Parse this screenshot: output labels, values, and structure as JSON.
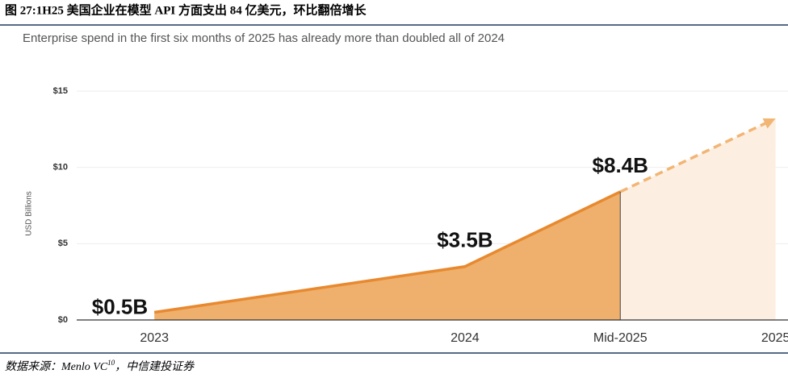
{
  "chart_data": {
    "type": "area",
    "title": "图 27:1H25 美国企业在模型 API 方面支出 84 亿美元，环比翻倍增长",
    "subtitle": "Enterprise spend in the first six months of 2025 has already more than doubled all of 2024",
    "y_label": "USD Billions",
    "x": [
      2023,
      2024,
      2024.5
    ],
    "series": [
      {
        "color": "#e8892f",
        "fill": "#eeb06c",
        "x": [
          2023,
          2024,
          2024.5
        ],
        "values": [
          0.5,
          3.5,
          8.4
        ],
        "value_labels": [
          "$0.5B",
          "$3.5B",
          "$8.4B"
        ]
      },
      {
        "color": "#f2b574",
        "fill": "#fcefe2",
        "x": [
          2024.5,
          2025
        ],
        "values": [
          8.4,
          13.2
        ],
        "dashed": true
      }
    ],
    "xlim": [
      2022.75,
      2025.04
    ],
    "xticks": [
      2023,
      2024,
      {
        "value": 2024.5,
        "label": "Mid-2025"
      },
      2025
    ],
    "ylim": [
      0,
      16
    ],
    "yticks": [
      {
        "value": 0,
        "label": "$0"
      },
      {
        "value": 5,
        "label": "$5"
      },
      {
        "value": 10,
        "label": "$10"
      },
      {
        "value": 15,
        "label": "$15"
      }
    ],
    "grid": true,
    "source": {
      "text": "数据来源：Menlo VC",
      "note": "10",
      "org": "，中信建投证券"
    }
  }
}
